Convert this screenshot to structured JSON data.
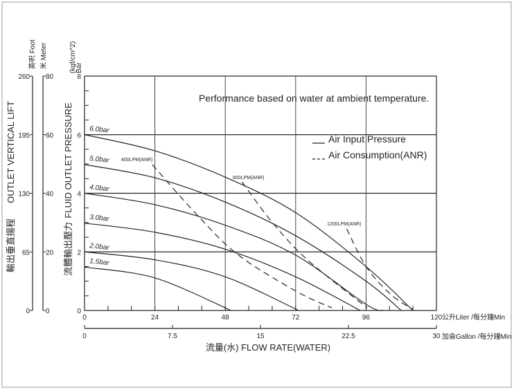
{
  "chart_data": {
    "type": "line",
    "annotation": "Performance based on water at ambient temperature.",
    "xlabel": "流量(水) FLOW RATE(WATER)",
    "x_axis_primary": {
      "unit_label": "公升Liter /每分鐘Min",
      "range": [
        0,
        120
      ],
      "ticks": [
        "0",
        "24",
        "48",
        "72",
        "96",
        "120"
      ]
    },
    "x_axis_secondary": {
      "unit_label": "加侖Gallon /每分鐘Min",
      "range": [
        0,
        30
      ],
      "ticks": [
        "0",
        "7.5",
        "15",
        "22.5",
        "30"
      ]
    },
    "y_axis_primary": {
      "label": "FLUID OUTLET PRESSURE",
      "label_cn": "流體輸出壓力",
      "unit_label": "(kgf/cm^2)",
      "unit_label2": "Bar",
      "range": [
        0,
        8
      ],
      "ticks": [
        "0",
        "2",
        "4",
        "6",
        "8"
      ]
    },
    "y_axis_foot": {
      "label": "OUTLET VERTICAL LIFT",
      "label_cn": "輸出垂直揚程",
      "unit_label": "英呎 Foot",
      "range": [
        0,
        260
      ],
      "ticks": [
        "0",
        "65",
        "130",
        "195",
        "260"
      ]
    },
    "y_axis_meter": {
      "unit_label": "米 Meter",
      "range": [
        0,
        80
      ],
      "ticks": [
        "0",
        "20",
        "40",
        "60",
        "80"
      ]
    },
    "grid": true,
    "legend": {
      "placement": "top-right",
      "entries": [
        {
          "label": "Air Input Pressure",
          "style": "solid"
        },
        {
          "label": "Air Consumption(ANR)",
          "style": "dashed"
        }
      ]
    },
    "series": [
      {
        "name": "6.0bar",
        "style": "solid",
        "points": [
          [
            0,
            6
          ],
          [
            24,
            5.45
          ],
          [
            48,
            4.55
          ],
          [
            72,
            3.34
          ],
          [
            96,
            1.5
          ],
          [
            112,
            0
          ]
        ]
      },
      {
        "name": "5.0bar",
        "style": "solid",
        "points": [
          [
            0,
            4.98
          ],
          [
            24,
            4.53
          ],
          [
            48,
            3.7
          ],
          [
            72,
            2.55
          ],
          [
            96,
            1.0
          ],
          [
            108,
            0
          ]
        ]
      },
      {
        "name": "4.0bar",
        "style": "solid",
        "points": [
          [
            0,
            4
          ],
          [
            24,
            3.61
          ],
          [
            48,
            2.91
          ],
          [
            72,
            1.89
          ],
          [
            96,
            0.21
          ],
          [
            102,
            0
          ]
        ]
      },
      {
        "name": "3.0bar",
        "style": "solid",
        "points": [
          [
            0,
            2.98
          ],
          [
            24,
            2.67
          ],
          [
            48,
            2.09
          ],
          [
            72,
            1.15
          ],
          [
            94,
            0
          ]
        ]
      },
      {
        "name": "2.0bar",
        "style": "solid",
        "points": [
          [
            0,
            2.0
          ],
          [
            24,
            1.73
          ],
          [
            48,
            1.15
          ],
          [
            73,
            0
          ]
        ]
      },
      {
        "name": "1.5bar",
        "style": "solid",
        "points": [
          [
            0,
            1.48
          ],
          [
            24,
            1.11
          ],
          [
            50,
            0
          ]
        ]
      },
      {
        "name": "400LPM(ANR)",
        "style": "dashed",
        "points": [
          [
            23.1,
            4.98
          ],
          [
            38.4,
            3.26
          ],
          [
            52.5,
            1.89
          ],
          [
            72.1,
            0.66
          ],
          [
            84.3,
            0.09
          ]
        ]
      },
      {
        "name": "800LPM(ANR)",
        "style": "dashed",
        "points": [
          [
            53.7,
            4.39
          ],
          [
            63.9,
            3.02
          ],
          [
            76,
            1.73
          ],
          [
            96.4,
            0.09
          ]
        ]
      },
      {
        "name": "1200LPM(ANR)",
        "style": "dashed",
        "points": [
          [
            89.4,
            2.79
          ],
          [
            96,
            1.5
          ],
          [
            104.3,
            0.56
          ],
          [
            112,
            0.03
          ]
        ]
      }
    ]
  }
}
